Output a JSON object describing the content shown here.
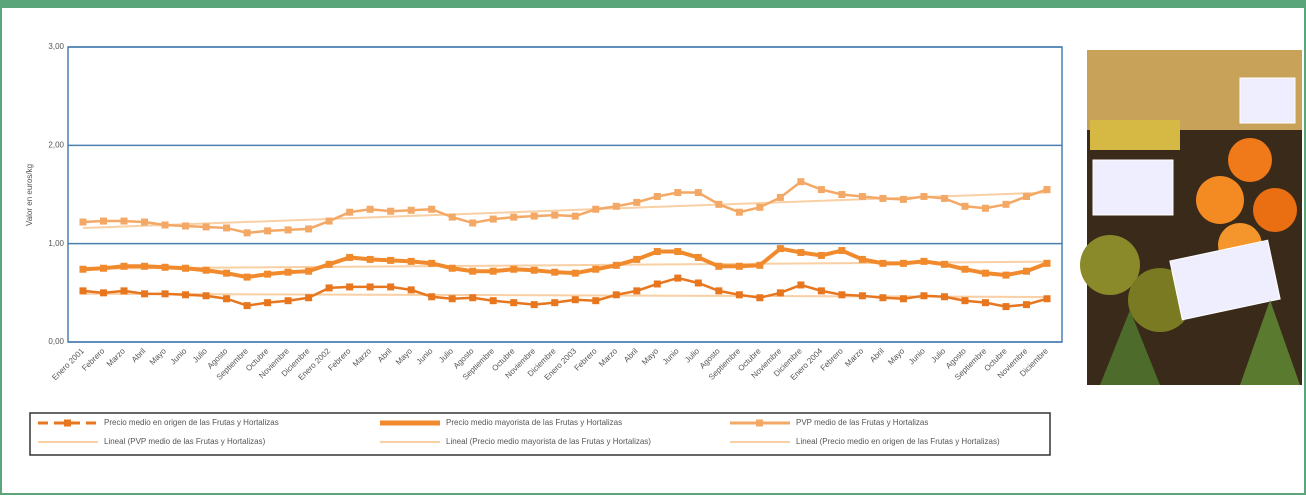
{
  "chart_data": {
    "type": "line",
    "y_label": "Valor en euros/kg",
    "categories": [
      "Enero 2001",
      "Febrero",
      "Marzo",
      "Abril",
      "Mayo",
      "Junio",
      "Julio",
      "Agosto",
      "Septiembre",
      "Octubre",
      "Noviembre",
      "Diciembre",
      "Enero 2002",
      "Febrero",
      "Marzo",
      "Abril",
      "Mayo",
      "Junio",
      "Julio",
      "Agosto",
      "Septiembre",
      "Octubre",
      "Noviembre",
      "Diciembre",
      "Enero 2003",
      "Febrero",
      "Marzo",
      "Abril",
      "Mayo",
      "Junio",
      "Julio",
      "Agosto",
      "Septiembre",
      "Octubre",
      "Noviembre",
      "Diciembre",
      "Enero 2004",
      "Febrero",
      "Marzo",
      "Abril",
      "Mayo",
      "Junio",
      "Julio",
      "Agosto",
      "Septiembre",
      "Octubre",
      "Noviembre",
      "Diciembre"
    ],
    "series": [
      {
        "name": "Precio medio en origen de las Frutas y Hortalizas",
        "color": "#e8761e",
        "trend": {
          "name": "Lineal (Precio medio en origen de las Frutas y Hortalizas)",
          "color": "#f9cfa4"
        },
        "values": [
          0.52,
          0.5,
          0.52,
          0.49,
          0.49,
          0.48,
          0.47,
          0.44,
          0.37,
          0.4,
          0.42,
          0.45,
          0.55,
          0.56,
          0.56,
          0.56,
          0.53,
          0.46,
          0.44,
          0.45,
          0.42,
          0.4,
          0.38,
          0.4,
          0.43,
          0.42,
          0.48,
          0.52,
          0.59,
          0.65,
          0.6,
          0.52,
          0.48,
          0.45,
          0.5,
          0.58,
          0.52,
          0.48,
          0.47,
          0.45,
          0.44,
          0.47,
          0.46,
          0.42,
          0.4,
          0.36,
          0.38,
          0.44
        ]
      },
      {
        "name": "Precio medio mayorista de las Frutas y Hortalizas",
        "color": "#f08a2c",
        "trend": {
          "name": "Lineal (Precio medio mayorista de las Frutas y Hortalizas)",
          "color": "#f9cfa4"
        },
        "values": [
          0.74,
          0.75,
          0.77,
          0.77,
          0.76,
          0.75,
          0.73,
          0.7,
          0.66,
          0.69,
          0.71,
          0.72,
          0.79,
          0.86,
          0.84,
          0.83,
          0.82,
          0.8,
          0.75,
          0.72,
          0.72,
          0.74,
          0.73,
          0.71,
          0.7,
          0.74,
          0.78,
          0.84,
          0.92,
          0.92,
          0.86,
          0.77,
          0.77,
          0.78,
          0.95,
          0.91,
          0.88,
          0.93,
          0.84,
          0.8,
          0.8,
          0.82,
          0.79,
          0.74,
          0.7,
          0.68,
          0.72,
          0.8
        ]
      },
      {
        "name": "PVP medio de las Frutas y Hortalizas",
        "color": "#f4a866",
        "trend": {
          "name": "Lineal (PVP medio de las Frutas y Hortalizas)",
          "color": "#f9cfa4"
        },
        "values": [
          1.22,
          1.23,
          1.23,
          1.22,
          1.19,
          1.18,
          1.17,
          1.16,
          1.11,
          1.13,
          1.14,
          1.15,
          1.23,
          1.32,
          1.35,
          1.33,
          1.34,
          1.35,
          1.27,
          1.21,
          1.25,
          1.27,
          1.28,
          1.29,
          1.28,
          1.35,
          1.38,
          1.42,
          1.48,
          1.52,
          1.52,
          1.4,
          1.32,
          1.37,
          1.47,
          1.63,
          1.55,
          1.5,
          1.48,
          1.46,
          1.45,
          1.48,
          1.46,
          1.38,
          1.36,
          1.4,
          1.48,
          1.55
        ]
      }
    ],
    "ylim": [
      0,
      3
    ],
    "yticks": [
      {
        "value": 0,
        "label": "0,00"
      },
      {
        "value": 1,
        "label": "1,00"
      },
      {
        "value": 2,
        "label": "2,00"
      },
      {
        "value": 3,
        "label": "3,00"
      }
    ],
    "grid": true
  }
}
